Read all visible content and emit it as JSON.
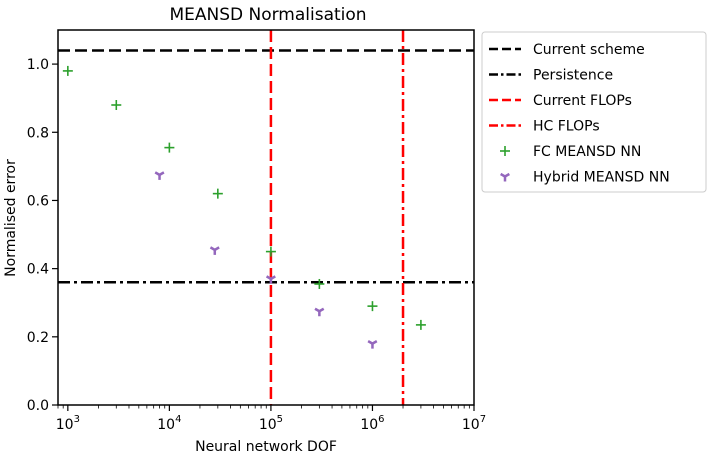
{
  "chart_data": {
    "type": "scatter",
    "title": "MEANSD Normalisation",
    "xlabel": "Neural network DOF",
    "ylabel": "Normalised error",
    "xscale": "log",
    "xlim": [
      800,
      10000000
    ],
    "ylim": [
      0.0,
      1.1
    ],
    "x_ticks": [
      {
        "value": 1000,
        "base": "10",
        "exp": "3"
      },
      {
        "value": 10000,
        "base": "10",
        "exp": "4"
      },
      {
        "value": 100000,
        "base": "10",
        "exp": "5"
      },
      {
        "value": 1000000,
        "base": "10",
        "exp": "6"
      },
      {
        "value": 10000000,
        "base": "10",
        "exp": "7"
      }
    ],
    "y_ticks": [
      {
        "value": 0.0,
        "label": "0.0"
      },
      {
        "value": 0.2,
        "label": "0.2"
      },
      {
        "value": 0.4,
        "label": "0.4"
      },
      {
        "value": 0.6,
        "label": "0.6"
      },
      {
        "value": 0.8,
        "label": "0.8"
      },
      {
        "value": 1.0,
        "label": "1.0"
      }
    ],
    "grid": false,
    "legend_position": "outside-right",
    "hlines": [
      {
        "name": "Current scheme",
        "y": 1.04,
        "color": "#000000",
        "style": "dashed"
      },
      {
        "name": "Persistence",
        "y": 0.36,
        "color": "#000000",
        "style": "dashdot"
      }
    ],
    "vlines": [
      {
        "name": "Current FLOPs",
        "x": 100000,
        "color": "#ff0000",
        "style": "dashed"
      },
      {
        "name": "HC FLOPs",
        "x": 2000000,
        "color": "#ff0000",
        "style": "dashdot"
      }
    ],
    "series": [
      {
        "name": "FC MEANSD NN",
        "marker": "plus",
        "color": "#2ca02c",
        "points": [
          {
            "x": 1000,
            "y": 0.98
          },
          {
            "x": 3000,
            "y": 0.88
          },
          {
            "x": 10000,
            "y": 0.755
          },
          {
            "x": 30000,
            "y": 0.62
          },
          {
            "x": 100000,
            "y": 0.45
          },
          {
            "x": 300000,
            "y": 0.355
          },
          {
            "x": 1000000,
            "y": 0.29
          },
          {
            "x": 3000000,
            "y": 0.235
          }
        ]
      },
      {
        "name": "Hybrid MEANSD NN",
        "marker": "tri_down",
        "color": "#9467bd",
        "points": [
          {
            "x": 8000,
            "y": 0.675
          },
          {
            "x": 28000,
            "y": 0.455
          },
          {
            "x": 100000,
            "y": 0.37
          },
          {
            "x": 300000,
            "y": 0.275
          },
          {
            "x": 1000000,
            "y": 0.18
          }
        ]
      }
    ]
  }
}
